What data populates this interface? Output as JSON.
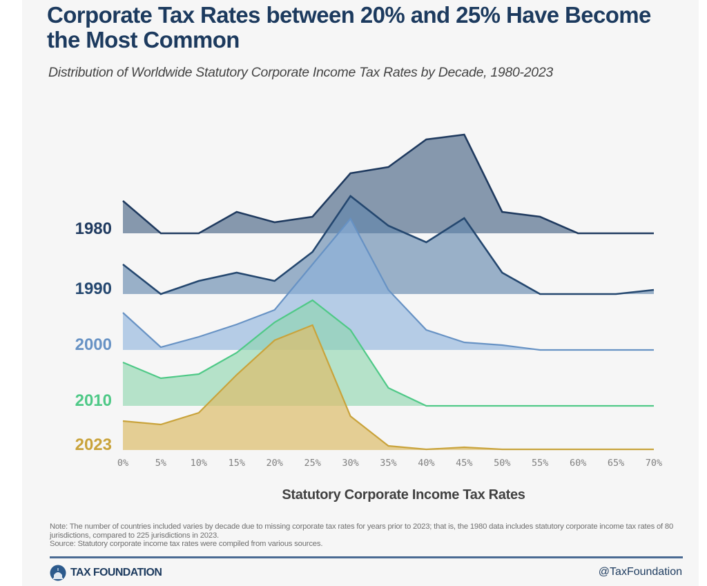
{
  "header": {
    "title": "Corporate Tax Rates between 20% and 25% Have Become the Most Common",
    "subtitle": "Distribution of Worldwide Statutory Corporate Income Tax Rates by Decade, 1980-2023"
  },
  "chart_data": {
    "type": "area",
    "subtype": "ridgeline",
    "title": "Corporate Tax Rates between 20% and 25% Have Become the Most Common",
    "subtitle": "Distribution of Worldwide Statutory Corporate Income Tax Rates by Decade, 1980-2023",
    "xlabel": "Statutory Corporate Income Tax Rates",
    "ylabel": "",
    "y_units": "relative frequency (index, estimated; no y-axis shown)",
    "x": [
      "0%",
      "5%",
      "10%",
      "15%",
      "20%",
      "25%",
      "30%",
      "35%",
      "40%",
      "45%",
      "50%",
      "55%",
      "60%",
      "65%",
      "70%"
    ],
    "x_values": [
      0,
      5,
      10,
      15,
      20,
      25,
      30,
      35,
      40,
      45,
      50,
      55,
      60,
      65,
      70
    ],
    "xlim": [
      0,
      70
    ],
    "grid": false,
    "legend": "inline-left",
    "series": [
      {
        "name": "1980",
        "color": "#1f3a5f",
        "fill": "#5a7390",
        "values": [
          47,
          0,
          0,
          31,
          16,
          24,
          87,
          96,
          136,
          143,
          31,
          24,
          0,
          0,
          0
        ]
      },
      {
        "name": "1990",
        "color": "#24476f",
        "fill": "#5f84ab",
        "values": [
          43,
          0,
          19,
          31,
          19,
          61,
          142,
          99,
          75,
          110,
          31,
          0,
          0,
          0,
          6
        ]
      },
      {
        "name": "2000",
        "color": "#6792c4",
        "fill": "#8db2dc",
        "values": [
          54,
          4,
          19,
          37,
          58,
          124,
          190,
          87,
          29,
          11,
          7,
          0,
          0,
          0,
          0
        ]
      },
      {
        "name": "2010",
        "color": "#4fc987",
        "fill": "#8dd5ac",
        "values": [
          63,
          40,
          46,
          77,
          121,
          153,
          110,
          26,
          0,
          0,
          0,
          0,
          0,
          0,
          0
        ]
      },
      {
        "name": "2023",
        "color": "#c9a33b",
        "fill": "#dcbe6e",
        "values": [
          42,
          37,
          54,
          109,
          159,
          181,
          49,
          6,
          1,
          4,
          1,
          1,
          1,
          1,
          1
        ]
      }
    ]
  },
  "footer": {
    "note": "Note: The number of countries included varies by decade due to missing corporate tax rates for years prior to 2023; that is, the 1980 data includes statutory corporate income tax rates of 80 jurisdictions, compared to 225 jurisdictions in 2023.",
    "source": "Source: Statutory corporate income tax rates were compiled from various sources.",
    "logo_text": "TAX FOUNDATION",
    "logo_icon": "capitol-dome-icon",
    "handle": "@TaxFoundation"
  }
}
